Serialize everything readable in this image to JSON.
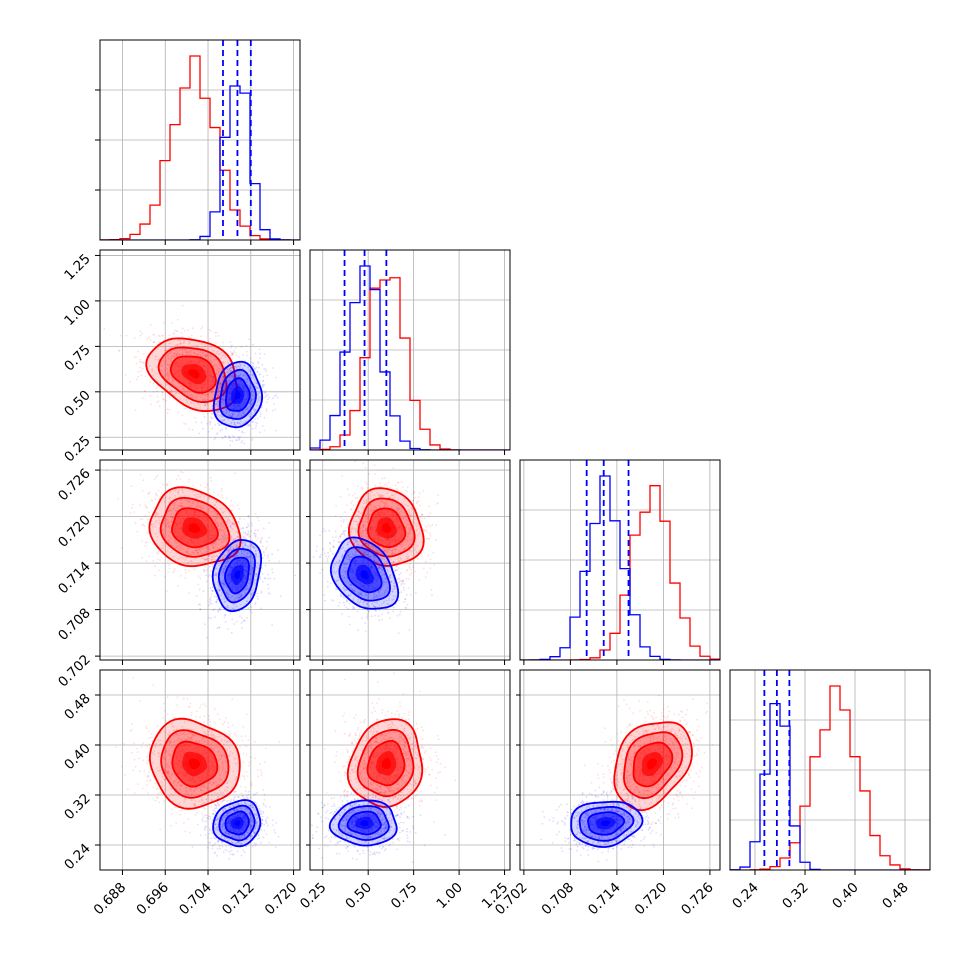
{
  "chart_data": {
    "type": "corner",
    "colors": {
      "series_a": "#ff0000",
      "series_b": "#0000ff",
      "grid": "#b0b0b0"
    },
    "parameters": [
      {
        "ticks": [
          "0.688",
          "0.696",
          "0.704",
          "0.712",
          "0.720"
        ],
        "tick_values": [
          0.688,
          0.696,
          0.704,
          0.712,
          0.72
        ],
        "range": [
          0.6838,
          0.7212
        ]
      },
      {
        "ticks": [
          "0.25",
          "0.50",
          "0.75",
          "1.00",
          "1.25"
        ],
        "tick_values": [
          0.25,
          0.5,
          0.75,
          1.0,
          1.25
        ],
        "range": [
          0.18,
          1.28
        ]
      },
      {
        "ticks": [
          "0.702",
          "0.708",
          "0.714",
          "0.720",
          "0.726"
        ],
        "tick_values": [
          0.702,
          0.708,
          0.714,
          0.72,
          0.726
        ],
        "range": [
          0.7015,
          0.7273
        ]
      },
      {
        "ticks": [
          "0.24",
          "0.32",
          "0.40",
          "0.48"
        ],
        "tick_values": [
          0.24,
          0.32,
          0.4,
          0.48
        ],
        "range": [
          0.2,
          0.52
        ]
      }
    ],
    "row_ticks": [
      null,
      {
        "ticks": [
          "0.25",
          "0.50",
          "0.75",
          "1.00",
          "1.25"
        ],
        "tick_values": [
          0.25,
          0.5,
          0.75,
          1.0,
          1.25
        ]
      },
      {
        "ticks": [
          "0.702",
          "0.708",
          "0.714",
          "0.720",
          "0.726"
        ],
        "tick_values": [
          0.702,
          0.708,
          0.714,
          0.72,
          0.726
        ]
      },
      {
        "ticks": [
          "0.24",
          "0.32",
          "0.40",
          "0.48"
        ],
        "tick_values": [
          0.24,
          0.32,
          0.4,
          0.48
        ]
      }
    ],
    "series": [
      {
        "color": "#ff0000",
        "mean": [
          0.7014,
          0.6,
          0.7185,
          0.37
        ],
        "std": [
          0.0042,
          0.1,
          0.0025,
          0.035
        ],
        "corr": {
          "0-1": -0.3,
          "0-2": -0.15,
          "0-3": -0.1,
          "1-2": -0.1,
          "1-3": 0.1,
          "2-3": 0.3
        }
      },
      {
        "color": "#0000ff",
        "mean": [
          0.7095,
          0.48,
          0.7125,
          0.275
        ],
        "std": [
          0.0022,
          0.09,
          0.0023,
          0.018
        ],
        "corr": {
          "0-1": 0.1,
          "0-2": 0.2,
          "0-3": 0.1,
          "1-2": -0.3,
          "1-3": 0.0,
          "2-3": 0.1
        }
      }
    ],
    "quantile_lines": {
      "color": "#0000ff",
      "values": [
        [
          0.7068,
          0.7095,
          0.712
        ],
        [
          0.37,
          0.48,
          0.6
        ],
        [
          0.7101,
          0.7123,
          0.7155
        ],
        [
          0.255,
          0.275,
          0.295
        ]
      ]
    }
  }
}
